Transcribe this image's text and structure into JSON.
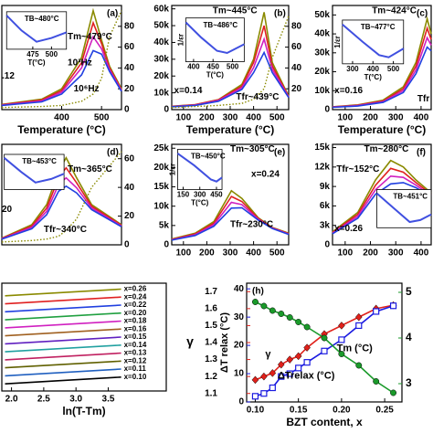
{
  "chart_data": [
    {
      "type": "line",
      "label": "(a)",
      "xlabel": "Temperature (°C)",
      "xlim": [
        250,
        550
      ],
      "xticks": [
        400,
        500
      ],
      "ylim": [
        0,
        60000
      ],
      "y2lim": [
        0,
        100
      ],
      "y2ticks": [
        0,
        20,
        40,
        60,
        80
      ],
      "x": [
        250,
        350,
        400,
        450,
        479,
        500,
        520,
        550
      ],
      "series": [
        {
          "color": "#8a8a00",
          "values": [
            3000,
            6000,
            12000,
            30000,
            57000,
            40000,
            25000,
            12000
          ]
        },
        {
          "color": "#e02020",
          "values": [
            2800,
            5500,
            11000,
            27000,
            50000,
            38000,
            24000,
            11500
          ]
        },
        {
          "color": "#d020c0",
          "values": [
            2600,
            5000,
            10000,
            24000,
            42000,
            35000,
            23000,
            11000
          ]
        },
        {
          "color": "#2040e0",
          "values": [
            2400,
            4500,
            9000,
            20000,
            34000,
            32000,
            22000,
            10500
          ]
        },
        {
          "color": "#8a8a00",
          "axis": "y2",
          "style": "dotted",
          "values": [
            2,
            3,
            4,
            8,
            15,
            30,
            70,
            95
          ]
        }
      ],
      "annotations": [
        "Tm~479°C",
        "10³Hz",
        "10⁶Hz",
        ".12"
      ],
      "inset": {
        "label": "TB~480°C",
        "xaxis": "T(°C)",
        "xlim": [
          440,
          520
        ],
        "xticks": [
          475,
          500
        ],
        "ylim": [
          0,
          1
        ],
        "x": [
          440,
          460,
          480,
          500,
          520
        ],
        "values": [
          0.9,
          0.5,
          0.2,
          0.3,
          0.45
        ]
      }
    },
    {
      "type": "line",
      "label": "(b)",
      "xlabel": "Temperature (°C)",
      "xlim": [
        50,
        550
      ],
      "xticks": [
        100,
        200,
        300,
        400,
        500
      ],
      "ylim": [
        0,
        62000
      ],
      "yticks": [
        0,
        {
          "value": 10000,
          "label": "10k"
        },
        {
          "value": 20000,
          "label": "20k"
        },
        {
          "value": 30000,
          "label": "30k"
        },
        {
          "value": 40000,
          "label": "40k"
        },
        {
          "value": 50000,
          "label": "50k"
        },
        {
          "value": 60000,
          "label": "60k"
        }
      ],
      "y2lim": [
        0,
        100
      ],
      "y2ticks": [
        20,
        40,
        60,
        80
      ],
      "x": [
        50,
        150,
        250,
        350,
        400,
        445,
        480,
        550
      ],
      "series": [
        {
          "color": "#8a8a00",
          "values": [
            2000,
            3000,
            6000,
            15000,
            30000,
            58000,
            28000,
            8000
          ]
        },
        {
          "color": "#e02020",
          "values": [
            1900,
            2900,
            5800,
            14000,
            28000,
            50000,
            26000,
            7800
          ]
        },
        {
          "color": "#d020c0",
          "values": [
            1800,
            2700,
            5500,
            13000,
            25000,
            42000,
            24000,
            7500
          ]
        },
        {
          "color": "#2040e0",
          "values": [
            1700,
            2500,
            5000,
            12000,
            22000,
            34000,
            22000,
            7200
          ]
        },
        {
          "color": "#8a8a00",
          "axis": "y2",
          "style": "dotted",
          "values": [
            2,
            3,
            4,
            6,
            10,
            20,
            50,
            90
          ]
        }
      ],
      "annotations": [
        "Tm~445°C",
        "x=0.14",
        "Tfr~439°C"
      ],
      "inset": {
        "label": "TB~486°C",
        "ylabel": "1/εr",
        "xaxis": "T(°C)",
        "xlim": [
          380,
          530
        ],
        "xticks": [
          400,
          450,
          500
        ],
        "ylim": [
          0,
          1
        ],
        "x": [
          380,
          420,
          460,
          486,
          530
        ],
        "values": [
          0.9,
          0.55,
          0.25,
          0.2,
          0.4
        ]
      }
    },
    {
      "type": "line",
      "label": "(c)",
      "xlabel": "Temperature (°C)",
      "xlim": [
        50,
        440
      ],
      "xticks": [
        100,
        200,
        300,
        400
      ],
      "ylim": [
        0,
        55000
      ],
      "yticks": [
        0,
        {
          "value": 10000,
          "label": "10k"
        },
        {
          "value": 20000,
          "label": "20k"
        },
        {
          "value": 30000,
          "label": "30k"
        },
        {
          "value": 40000,
          "label": "40k"
        },
        {
          "value": 50000,
          "label": "50k"
        }
      ],
      "x": [
        50,
        150,
        250,
        330,
        380,
        424,
        440
      ],
      "series": [
        {
          "color": "#8a8a00",
          "values": [
            1500,
            2500,
            5000,
            12000,
            25000,
            48000,
            40000
          ]
        },
        {
          "color": "#e02020",
          "values": [
            1400,
            2300,
            4600,
            11000,
            23000,
            43000,
            37000
          ]
        },
        {
          "color": "#d020c0",
          "values": [
            1300,
            2100,
            4200,
            10000,
            21000,
            38000,
            34000
          ]
        },
        {
          "color": "#2040e0",
          "values": [
            1200,
            1900,
            3800,
            9000,
            19000,
            33000,
            31000
          ]
        }
      ],
      "annotations": [
        "Tm~424°C",
        "x=0.16",
        "Tfr"
      ],
      "inset": {
        "label": "TB~477°C",
        "ylabel": "1/εr",
        "xaxis": "T(°C)",
        "xlim": [
          250,
          550
        ],
        "xticks": [
          300,
          400,
          500
        ],
        "ylim": [
          0,
          1
        ],
        "x": [
          250,
          350,
          430,
          477,
          550
        ],
        "values": [
          0.9,
          0.5,
          0.2,
          0.15,
          0.35
        ]
      }
    },
    {
      "type": "line",
      "label": "(d)",
      "xlim": [
        150,
        550
      ],
      "ylim": [
        0,
        30000
      ],
      "y2lim": [
        0,
        70
      ],
      "y2ticks": [
        0,
        20,
        40,
        60
      ],
      "x": [
        150,
        250,
        300,
        340,
        365,
        400,
        450,
        550
      ],
      "series": [
        {
          "color": "#8a8a00",
          "values": [
            2000,
            6000,
            12000,
            22000,
            26000,
            20000,
            12000,
            6000
          ]
        },
        {
          "color": "#e02020",
          "values": [
            1900,
            5600,
            11000,
            20000,
            23000,
            18500,
            11500,
            5800
          ]
        },
        {
          "color": "#d020c0",
          "values": [
            1800,
            5200,
            10000,
            18000,
            20000,
            17000,
            11000,
            5600
          ]
        },
        {
          "color": "#2040e0",
          "values": [
            1700,
            4800,
            9000,
            16000,
            17500,
            15500,
            10500,
            5400
          ]
        },
        {
          "color": "#8a8a00",
          "axis": "y2",
          "style": "dotted",
          "values": [
            2,
            3,
            4,
            6,
            10,
            18,
            40,
            65
          ]
        }
      ],
      "annotations": [
        "Tm~365°C",
        "Tfr~340°C",
        "20"
      ],
      "inset": {
        "label": "TB~453°C",
        "xlim": [
          380,
          520
        ],
        "ylim": [
          0,
          1
        ],
        "x": [
          380,
          420,
          453,
          490,
          520
        ],
        "values": [
          0.9,
          0.5,
          0.2,
          0.3,
          0.45
        ]
      }
    },
    {
      "type": "line",
      "label": "(e)",
      "xlim": [
        50,
        550
      ],
      "xticks": [
        100,
        200,
        300,
        400,
        500
      ],
      "ylim": [
        0,
        26000
      ],
      "yticks": [
        0,
        {
          "value": 5000,
          "label": "5k"
        },
        {
          "value": 10000,
          "label": "10k"
        },
        {
          "value": 15000,
          "label": "15k"
        },
        {
          "value": 20000,
          "label": "20k"
        },
        {
          "value": 25000,
          "label": "25k"
        }
      ],
      "x": [
        50,
        150,
        230,
        305,
        350,
        420,
        480,
        550
      ],
      "series": [
        {
          "color": "#8a8a00",
          "values": [
            1500,
            3000,
            6000,
            14000,
            12000,
            7000,
            4500,
            3000
          ]
        },
        {
          "color": "#e02020",
          "values": [
            1400,
            2800,
            5600,
            12500,
            11200,
            6800,
            4400,
            2900
          ]
        },
        {
          "color": "#d020c0",
          "values": [
            1300,
            2600,
            5200,
            11000,
            10400,
            6600,
            4300,
            2800
          ]
        },
        {
          "color": "#2040e0",
          "values": [
            1200,
            2400,
            4800,
            9500,
            9600,
            6400,
            4200,
            2700
          ]
        }
      ],
      "annotations": [
        "Tm~305°C",
        "x=0.24",
        "Tfr~230°C"
      ],
      "inset": {
        "label": "TB~450°C",
        "ylabel": "1/εr",
        "xaxis": "T(°C)",
        "xlim": [
          100,
          500
        ],
        "xticks": [
          150,
          300,
          450
        ],
        "ylim": [
          0,
          1
        ],
        "x": [
          100,
          250,
          400,
          450,
          500
        ],
        "values": [
          0.9,
          0.6,
          0.25,
          0.2,
          0.3
        ]
      }
    },
    {
      "type": "line",
      "label": "(f)",
      "xlim": [
        50,
        440
      ],
      "xticks": [
        100,
        200,
        300,
        400
      ],
      "ylim": [
        0,
        15500
      ],
      "yticks": [
        0,
        {
          "value": 3000,
          "label": "3k"
        },
        {
          "value": 6000,
          "label": "6k"
        },
        {
          "value": 9000,
          "label": "9k"
        },
        {
          "value": 12000,
          "label": "12k"
        },
        {
          "value": 15000,
          "label": "15k"
        }
      ],
      "x": [
        50,
        150,
        220,
        280,
        330,
        380,
        440
      ],
      "series": [
        {
          "color": "#8a8a00",
          "values": [
            2000,
            5000,
            10000,
            13000,
            12000,
            10000,
            8000
          ]
        },
        {
          "color": "#e02020",
          "values": [
            1900,
            4700,
            9200,
            11800,
            11200,
            9600,
            7800
          ]
        },
        {
          "color": "#d020c0",
          "values": [
            1800,
            4400,
            8500,
            10600,
            10400,
            9200,
            7600
          ]
        },
        {
          "color": "#2040e0",
          "values": [
            1700,
            4100,
            7800,
            9400,
            9600,
            8800,
            7400
          ]
        }
      ],
      "annotations": [
        "Tm~280°C",
        "Tfr~152°C",
        "x=0.26"
      ],
      "inset": {
        "label": "TB~451°C",
        "xlim": [
          300,
          550
        ],
        "ylim": [
          0,
          1
        ],
        "x": [
          300,
          380,
          451,
          500,
          550
        ],
        "values": [
          0.9,
          0.5,
          0.15,
          0.2,
          0.35
        ]
      }
    },
    {
      "type": "line",
      "xlabel": "ln(T-Tm)",
      "xlim": [
        1.85,
        4.4
      ],
      "xticks": [
        {
          "value": 2,
          "label": "2.0"
        },
        2.5,
        {
          "value": 3,
          "label": "3.0"
        },
        3.5
      ],
      "ylim": [
        0.5,
        13.3
      ],
      "x": [
        1.9,
        3.7
      ],
      "series": [
        {
          "name": "x=0.26",
          "color": "#8a8a00",
          "values": [
            11.8,
            12.6
          ]
        },
        {
          "name": "x=0.24",
          "color": "#e02020",
          "values": [
            10.85,
            11.65
          ]
        },
        {
          "name": "x=0.22",
          "color": "#2040e0",
          "values": [
            9.9,
            10.7
          ]
        },
        {
          "name": "x=0.20",
          "color": "#20a040",
          "values": [
            8.95,
            9.75
          ]
        },
        {
          "name": "x=0.18",
          "color": "#d020c0",
          "values": [
            8.0,
            8.8
          ]
        },
        {
          "name": "x=0.16",
          "color": "#a06020",
          "values": [
            7.05,
            7.85
          ]
        },
        {
          "name": "x=0.15",
          "color": "#6020c0",
          "values": [
            6.1,
            6.9
          ]
        },
        {
          "name": "x=0.14",
          "color": "#20a0a0",
          "values": [
            5.15,
            5.95
          ]
        },
        {
          "name": "x=0.13",
          "color": "#c02060",
          "values": [
            4.2,
            5.0
          ]
        },
        {
          "name": "x=0.12",
          "color": "#606000",
          "values": [
            3.25,
            4.05
          ]
        },
        {
          "name": "x=0.11",
          "color": "#2060c0",
          "values": [
            2.3,
            3.1
          ]
        },
        {
          "name": "x=0.10",
          "color": "#000000",
          "values": [
            1.35,
            2.15
          ]
        }
      ]
    },
    {
      "type": "line",
      "label": "(h)",
      "xlabel": "BZT content, x",
      "ylabel": "γ",
      "y2label": "ΔT relax (°C)",
      "xlim": [
        0.09,
        0.27
      ],
      "xticks": [
        {
          "value": 0.1,
          "label": "0.10"
        },
        0.15,
        {
          "value": 0.2,
          "label": "0.20"
        },
        0.25
      ],
      "ylim": [
        1.05,
        1.75
      ],
      "yticks": [
        1.1,
        1.2,
        1.3,
        1.4,
        1.5,
        1.6,
        1.7
      ],
      "y2lim": [
        0,
        42
      ],
      "y2ticks": [
        0,
        10,
        20,
        30,
        40
      ],
      "y3lim": [
        2.6,
        5.2
      ],
      "y3ticks": [
        3,
        4,
        5
      ],
      "x": [
        0.1,
        0.11,
        0.12,
        0.13,
        0.14,
        0.15,
        0.16,
        0.18,
        0.2,
        0.22,
        0.24,
        0.26
      ],
      "series": [
        {
          "name": "γ",
          "color": "#e0201a",
          "marker": "diamond",
          "values": [
            1.18,
            1.2,
            1.22,
            1.27,
            1.3,
            1.32,
            1.37,
            1.45,
            1.5,
            1.55,
            1.6,
            1.62
          ]
        },
        {
          "name": "ΔTrelax (°C)",
          "color": "#1a1ae0",
          "axis": "y2",
          "marker": "square",
          "values": [
            2,
            3,
            5,
            9,
            10,
            12,
            14,
            18,
            22,
            27,
            32,
            34
          ]
        },
        {
          "name": "Tm (°C)",
          "color": "#1a9a2a",
          "axis": "y3",
          "marker": "circle",
          "values": [
            4.79,
            4.7,
            4.6,
            4.53,
            4.45,
            4.35,
            4.24,
            4.0,
            3.65,
            3.4,
            3.05,
            2.8
          ]
        }
      ]
    }
  ]
}
